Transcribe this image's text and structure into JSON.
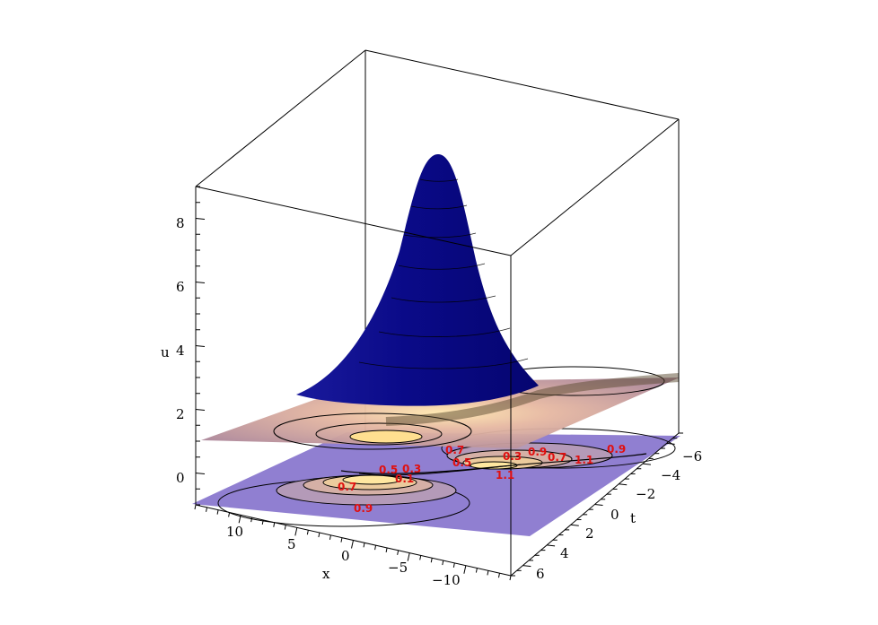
{
  "chart_data": {
    "type": "surface3d",
    "title": "",
    "axes": {
      "x": {
        "label": "x",
        "range": [
          -14,
          14
        ],
        "ticks": [
          "10",
          "5",
          "0",
          "−5",
          "−10"
        ]
      },
      "t": {
        "label": "t",
        "range": [
          -7,
          7
        ],
        "ticks": [
          "−6",
          "−4",
          "−2",
          "0",
          "2",
          "4",
          "6"
        ]
      },
      "u": {
        "label": "u",
        "range": [
          -1,
          9
        ],
        "ticks": [
          "0",
          "2",
          "4",
          "6",
          "8"
        ]
      }
    },
    "surface": {
      "peak_u": 8.5,
      "peak_at": {
        "x": 0,
        "t": 0
      },
      "baseline_u": 1,
      "color_top": "#0a0a8c",
      "color_base": "#b3869a"
    },
    "contour_plane": {
      "z": -1,
      "color": "#8470c8"
    },
    "contour_labels": [
      "0.9",
      "0.7",
      "0.5",
      "0.3",
      "0.1",
      "1.1",
      "0.9",
      "0.7",
      "0.5",
      "0.3",
      "1.1",
      "0.9",
      "0.7"
    ]
  }
}
